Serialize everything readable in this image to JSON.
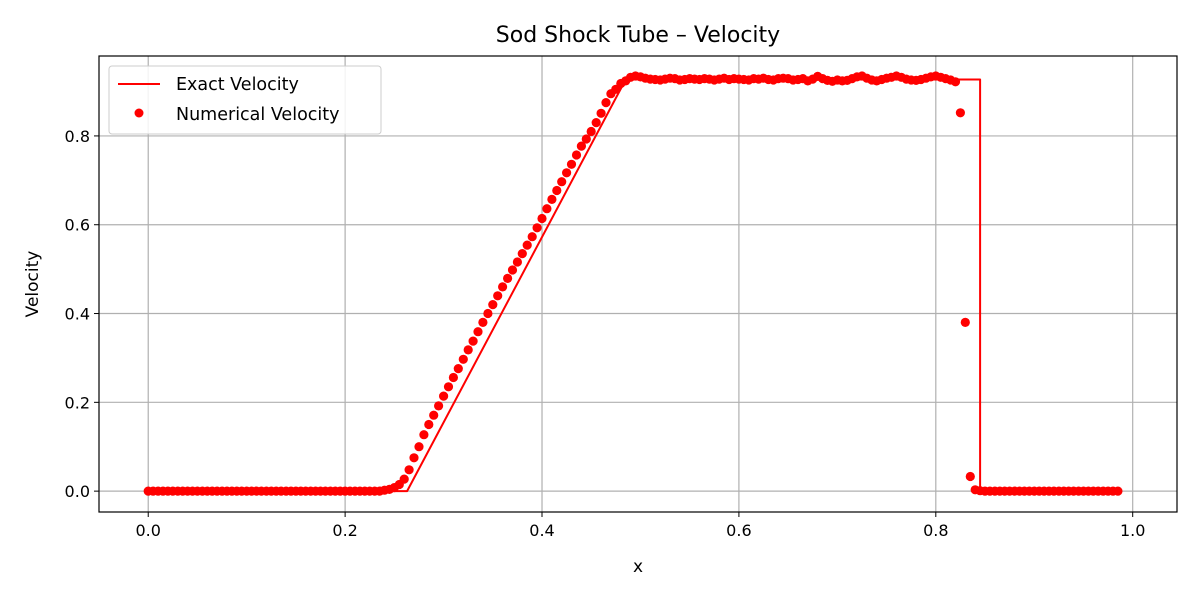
{
  "chart_data": {
    "type": "line",
    "title": "Sod Shock Tube – Velocity",
    "xlabel": "x",
    "ylabel": "Velocity",
    "xlim": [
      -0.05,
      1.045
    ],
    "ylim": [
      -0.047,
      0.98
    ],
    "xticks": [
      0.0,
      0.2,
      0.4,
      0.6,
      0.8,
      1.0
    ],
    "xtick_labels": [
      "0.0",
      "0.2",
      "0.4",
      "0.6",
      "0.8",
      "1.0"
    ],
    "yticks": [
      0.0,
      0.2,
      0.4,
      0.6,
      0.8
    ],
    "ytick_labels": [
      "0.0",
      "0.2",
      "0.4",
      "0.6",
      "0.8"
    ],
    "grid": true,
    "legend_position": "top-left",
    "colors": {
      "series": "#ff0000",
      "grid": "#b0b0b0",
      "frame": "#000000"
    },
    "exact": {
      "name": "Exact Velocity",
      "style": "line",
      "x": [
        0.0,
        0.263,
        0.485,
        0.845,
        0.845,
        0.86
      ],
      "y": [
        0.0,
        0.0,
        0.927,
        0.927,
        0.0,
        0.0
      ]
    },
    "numerical": {
      "name": "Numerical Velocity",
      "style": "markers",
      "x_start": 0.0,
      "x_step": 0.005,
      "y": [
        0,
        0,
        0,
        0,
        0,
        0,
        0,
        0,
        0,
        0,
        0,
        0,
        0,
        0,
        0,
        0,
        0,
        0,
        0,
        0,
        0,
        0,
        0,
        0,
        0,
        0,
        0,
        0,
        0,
        0,
        0,
        0,
        0,
        0,
        0,
        0,
        0,
        0,
        0,
        0,
        0,
        0,
        0,
        0,
        0,
        0,
        0,
        0,
        0.002,
        0.004,
        0.008,
        0.015,
        0.027,
        0.048,
        0.075,
        0.1,
        0.127,
        0.15,
        0.171,
        0.192,
        0.214,
        0.235,
        0.256,
        0.276,
        0.297,
        0.318,
        0.338,
        0.359,
        0.38,
        0.4,
        0.42,
        0.44,
        0.46,
        0.479,
        0.498,
        0.516,
        0.535,
        0.554,
        0.573,
        0.593,
        0.614,
        0.636,
        0.657,
        0.677,
        0.697,
        0.717,
        0.736,
        0.757,
        0.777,
        0.793,
        0.81,
        0.83,
        0.851,
        0.875,
        0.895,
        0.905,
        0.918,
        0.924,
        0.932,
        0.935,
        0.933,
        0.93,
        0.928,
        0.927,
        0.926,
        0.928,
        0.93,
        0.929,
        0.926,
        0.927,
        0.929,
        0.928,
        0.927,
        0.929,
        0.928,
        0.926,
        0.928,
        0.93,
        0.927,
        0.929,
        0.928,
        0.927,
        0.926,
        0.929,
        0.928,
        0.93,
        0.927,
        0.926,
        0.929,
        0.93,
        0.929,
        0.926,
        0.927,
        0.929,
        0.924,
        0.928,
        0.934,
        0.929,
        0.925,
        0.923,
        0.926,
        0.924,
        0.925,
        0.929,
        0.933,
        0.935,
        0.93,
        0.926,
        0.924,
        0.927,
        0.93,
        0.932,
        0.935,
        0.932,
        0.928,
        0.926,
        0.925,
        0.927,
        0.93,
        0.933,
        0.935,
        0.932,
        0.929,
        0.926,
        0.922,
        0.852,
        0.38,
        0.033,
        0.003,
        0.001,
        0,
        0,
        0,
        0,
        0,
        0,
        0,
        0,
        0,
        0,
        0,
        0,
        0,
        0,
        0,
        0,
        0,
        0,
        0,
        0,
        0,
        0,
        0,
        0,
        0,
        0,
        0,
        0
      ]
    }
  }
}
